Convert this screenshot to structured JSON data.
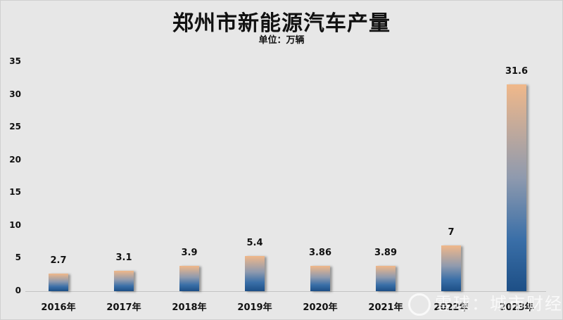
{
  "chart_data": {
    "type": "bar",
    "title": "郑州市新能源汽车产量",
    "subtitle": "单位：万辆",
    "xlabel": "",
    "ylabel": "",
    "categories": [
      "2016年",
      "2017年",
      "2018年",
      "2019年",
      "2020年",
      "2021年",
      "2022年",
      "2023年"
    ],
    "values": [
      2.7,
      3.1,
      3.9,
      5.4,
      3.86,
      3.89,
      7,
      31.6
    ],
    "value_labels": [
      "2.7",
      "3.1",
      "3.9",
      "5.4",
      "3.86",
      "3.89",
      "7",
      "31.6"
    ],
    "ylim": [
      0,
      35
    ],
    "yticks": [
      "0",
      "5",
      "10",
      "15",
      "20",
      "25",
      "30",
      "35"
    ],
    "grid": false,
    "legend": null,
    "bar_gradient": {
      "top": "#f0b88a",
      "bottom": "#1d4f86"
    }
  },
  "watermark": "雪球：城市财经"
}
